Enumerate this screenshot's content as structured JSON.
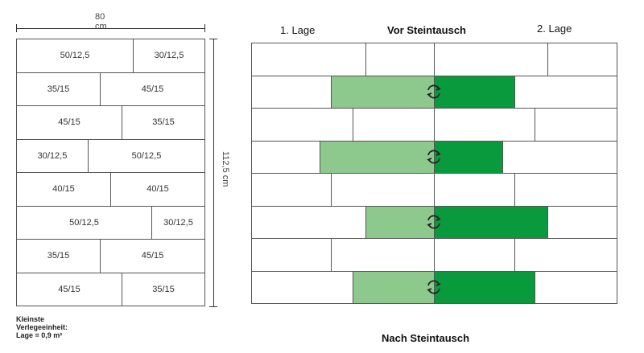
{
  "left": {
    "width_label": "80 cm",
    "height_label": "112,5 cm",
    "footnote": "Kleinste Verlegeeinheit: Lage = 0,9 m²",
    "rows": [
      [
        "50/12,5",
        "30/12,5"
      ],
      [
        "35/15",
        "45/15"
      ],
      [
        "45/15",
        "35/15"
      ],
      [
        "30/12,5",
        "50/12,5"
      ],
      [
        "40/15",
        "40/15"
      ],
      [
        "50/12,5",
        "30/12,5"
      ],
      [
        "35/15",
        "45/15"
      ],
      [
        "45/15",
        "35/15"
      ]
    ]
  },
  "right": {
    "layer1_label": "1. Lage",
    "title_top": "Vor Steintausch",
    "layer2_label": "2. Lage",
    "title_bottom": "Nach Steintausch",
    "swap_icon": "swap-arrows-icon",
    "colors": {
      "light_green": "#8dc98d",
      "dark_green": "#0a9a3e",
      "border": "#555555"
    }
  }
}
